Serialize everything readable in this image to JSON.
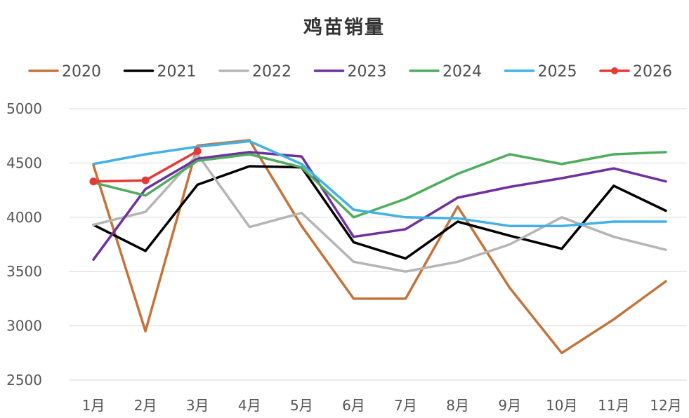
{
  "chart_data": {
    "type": "line",
    "title": "鸡苗销量",
    "xlabel": "",
    "ylabel": "",
    "ylim": [
      2500,
      5000
    ],
    "yticks": [
      2500,
      3000,
      3500,
      4000,
      4500,
      5000
    ],
    "grid": true,
    "legend_position": "top",
    "categories": [
      "1月",
      "2月",
      "3月",
      "4月",
      "5月",
      "6月",
      "7月",
      "8月",
      "9月",
      "10月",
      "11月",
      "12月"
    ],
    "series": [
      {
        "name": "2020",
        "color": "#C4733A",
        "values": [
          4480,
          2950,
          4660,
          4710,
          3920,
          3250,
          3250,
          4100,
          3350,
          2750,
          3060,
          3410
        ],
        "markers": false
      },
      {
        "name": "2021",
        "color": "#000000",
        "values": [
          3930,
          3690,
          4300,
          4470,
          4460,
          3770,
          3620,
          3960,
          3830,
          3710,
          4290,
          4060
        ],
        "markers": false
      },
      {
        "name": "2022",
        "color": "#B5B5B5",
        "values": [
          3930,
          4050,
          4580,
          3910,
          4040,
          3590,
          3500,
          3590,
          3750,
          4000,
          3820,
          3700
        ],
        "markers": false
      },
      {
        "name": "2023",
        "color": "#7030A0",
        "values": [
          3610,
          4260,
          4540,
          4600,
          4560,
          3820,
          3890,
          4180,
          4280,
          4360,
          4450,
          4330
        ],
        "markers": false
      },
      {
        "name": "2024",
        "color": "#4EAD5B",
        "values": [
          4320,
          4200,
          4520,
          4580,
          4460,
          4000,
          4170,
          4400,
          4580,
          4490,
          4580,
          4600
        ],
        "markers": false
      },
      {
        "name": "2025",
        "color": "#41B1E6",
        "values": [
          4490,
          4580,
          4650,
          4700,
          4490,
          4070,
          4000,
          3990,
          3920,
          3920,
          3960,
          3960
        ],
        "markers": false
      },
      {
        "name": "2026",
        "color": "#E53935",
        "values": [
          4330,
          4340,
          4610,
          null,
          null,
          null,
          null,
          null,
          null,
          null,
          null,
          null
        ],
        "markers": true
      }
    ]
  }
}
